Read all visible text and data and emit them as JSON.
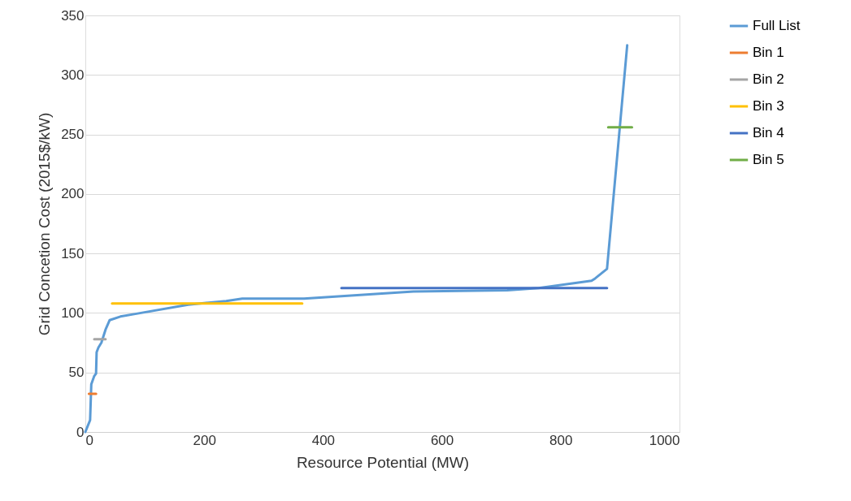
{
  "chart_data": {
    "type": "line",
    "xlabel": "Resource Potential (MW)",
    "ylabel": "Grid Concetion Cost (2015$/kW)",
    "xlim": [
      0,
      1000
    ],
    "xticks": [
      0,
      200,
      400,
      600,
      800,
      1000
    ],
    "ylim": [
      0,
      350
    ],
    "yticks": [
      0,
      50,
      100,
      150,
      200,
      250,
      300,
      350
    ],
    "grid": "y",
    "legend": "right",
    "marker": "none",
    "line_style": "solid",
    "series": [
      {
        "name": "Full List",
        "color": "#5b9bd5",
        "x": [
          0,
          8,
          10,
          15,
          18,
          19,
          22,
          27,
          34,
          41,
          59,
          82,
          173,
          237,
          264,
          368,
          552,
          710,
          763,
          852,
          858,
          878,
          912
        ],
        "values": [
          0,
          10,
          40,
          47,
          49,
          67,
          71,
          75,
          86,
          94,
          97,
          99,
          107,
          110,
          112,
          112,
          118,
          119,
          121,
          127,
          129,
          137,
          325
        ]
      },
      {
        "name": "Bin 1",
        "color": "#ed7d31",
        "x": [
          6,
          18
        ],
        "values": [
          32,
          32
        ]
      },
      {
        "name": "Bin 2",
        "color": "#a5a5a5",
        "x": [
          15,
          34
        ],
        "values": [
          78,
          78
        ]
      },
      {
        "name": "Bin 3",
        "color": "#ffc000",
        "x": [
          45,
          365
        ],
        "values": [
          108,
          108
        ]
      },
      {
        "name": "Bin 4",
        "color": "#4472c4",
        "x": [
          431,
          878
        ],
        "values": [
          121,
          121
        ]
      },
      {
        "name": "Bin 5",
        "color": "#70ad47",
        "x": [
          880,
          920
        ],
        "values": [
          256,
          256
        ]
      }
    ]
  }
}
